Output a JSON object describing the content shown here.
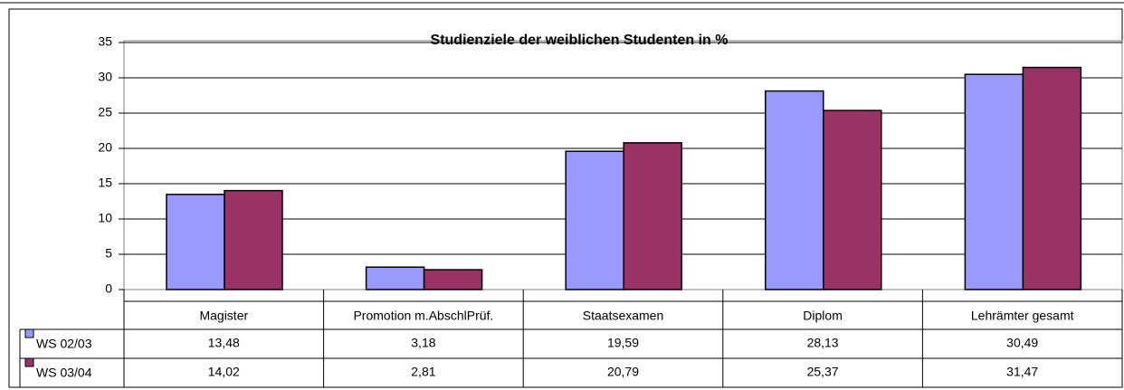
{
  "chart_data": {
    "type": "bar",
    "title": "Studienziele der weiblichen Studenten in %",
    "categories": [
      "Magister",
      "Promotion m.AbschlPrüf.",
      "Staatsexamen",
      "Diplom",
      "Lehrämter gesamt"
    ],
    "series": [
      {
        "name": "WS 02/03",
        "color": "#9999ff",
        "values": [
          13.48,
          3.18,
          19.59,
          28.13,
          30.49
        ],
        "value_labels": [
          "13,48",
          "3,18",
          "19,59",
          "28,13",
          "30,49"
        ]
      },
      {
        "name": "WS 03/04",
        "color": "#993366",
        "values": [
          14.02,
          2.81,
          20.79,
          25.37,
          31.47
        ],
        "value_labels": [
          "14,02",
          "2,81",
          "20,79",
          "25,37",
          "31,47"
        ]
      }
    ],
    "ylim": [
      0,
      35
    ],
    "yticks": [
      0,
      5,
      10,
      15,
      20,
      25,
      30,
      35
    ],
    "grid": true
  }
}
